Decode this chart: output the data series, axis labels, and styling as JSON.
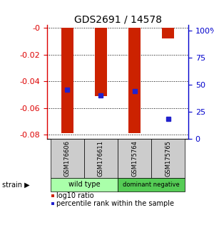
{
  "title": "GDS2691 / 14578",
  "samples": [
    "GSM176606",
    "GSM176611",
    "GSM175764",
    "GSM175765"
  ],
  "log10_ratios": [
    -0.079,
    -0.051,
    -0.079,
    -0.008
  ],
  "percentile_ranks": [
    45,
    40,
    44,
    18
  ],
  "bar_color": "#cc2200",
  "marker_color": "#2222cc",
  "ylim_left": [
    -0.083,
    0.002
  ],
  "ylim_right": [
    0,
    105
  ],
  "yticks_left": [
    0,
    -0.02,
    -0.04,
    -0.06,
    -0.08
  ],
  "ytick_labels_left": [
    "-0",
    "-0.02",
    "-0.04",
    "-0.06",
    "-0.08"
  ],
  "yticks_right": [
    0,
    25,
    50,
    75,
    100
  ],
  "ytick_labels_right": [
    "0",
    "25",
    "50",
    "75",
    "100%"
  ],
  "groups": [
    {
      "label": "wild type",
      "color": "#aaffaa",
      "indices": [
        0,
        1
      ]
    },
    {
      "label": "dominant negative",
      "color": "#55cc55",
      "indices": [
        2,
        3
      ]
    }
  ],
  "legend_red_label": "log10 ratio",
  "legend_blue_label": "percentile rank within the sample",
  "strain_label": "strain",
  "bar_width": 0.35,
  "background_color": "#ffffff",
  "left_axis_color": "#dd0000",
  "right_axis_color": "#0000cc",
  "label_box_color": "#cccccc",
  "spine_color": "#000000"
}
